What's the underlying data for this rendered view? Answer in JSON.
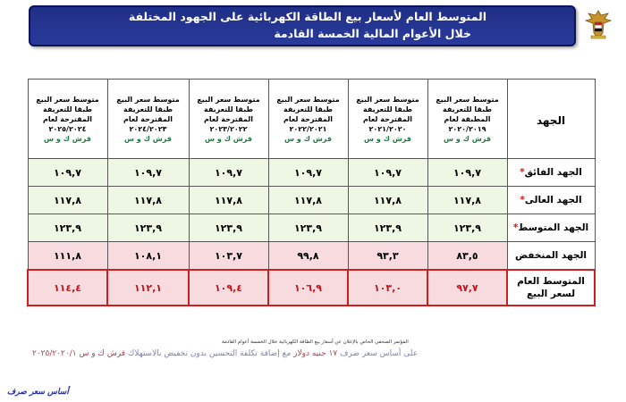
{
  "header": {
    "line1": "المتوسط العام لأسعار بيع الطاقة الكهربائية على الجهود المختلفة",
    "line2": "خلال الأعوام المالية الخمسة القادمة"
  },
  "table": {
    "corner": "الجهد",
    "columns": [
      {
        "title": "متوسط سعر البيع طبقا للتعريفة المطبقة لعام ٢٠٢٠/٢٠١٩",
        "unit": "قرش ك و س"
      },
      {
        "title": "متوسط سعر البيع طبقا للتعريفة المقترحة لعام ٢٠٢١/٢٠٢٠",
        "unit": "قرش ك و س"
      },
      {
        "title": "متوسط سعر البيع طبقا للتعريفة المقترحة لعام ٢٠٢٢/٢٠٢١",
        "unit": "قرش ك و س"
      },
      {
        "title": "متوسط سعر البيع طبقا للتعريفة المقترحة لعام ٢٠٢٣/٢٠٢٢",
        "unit": "قرش ك و س"
      },
      {
        "title": "متوسط سعر البيع طبقا للتعريفة المقترحة لعام ٢٠٢٤/٢٠٢٣",
        "unit": "قرش ك و س"
      },
      {
        "title": "متوسط سعر البيع طبقا للتعريفة المقترحة لعام ٢٠٢٥/٢٠٢٤",
        "unit": "قرش ك و س"
      }
    ],
    "rows": [
      {
        "label": "الجهد الفائق",
        "star": "*",
        "values": [
          "١٠٩,٧",
          "١٠٩,٧",
          "١٠٩,٧",
          "١٠٩,٧",
          "١٠٩,٧",
          "١٠٩,٧"
        ]
      },
      {
        "label": "الجهد العالى",
        "star": "*",
        "values": [
          "١١٧,٨",
          "١١٧,٨",
          "١١٧,٨",
          "١١٧,٨",
          "١١٧,٨",
          "١١٧,٨"
        ]
      },
      {
        "label": "الجهد المتوسط",
        "star": "*",
        "values": [
          "١٢٣,٩",
          "١٢٣,٩",
          "١٢٣,٩",
          "١٢٣,٩",
          "١٢٣,٩",
          "١٢٣,٩"
        ]
      },
      {
        "label": "الجهد المنخفض",
        "star": "",
        "values": [
          "٨٣,٥",
          "٩٣,٣",
          "٩٩,٨",
          "١٠٣,٧",
          "١٠٨,١",
          "١١١,٨"
        ]
      },
      {
        "label": "المتوسط العام لسعر البيع",
        "star": "",
        "values": [
          "٩٧,٧",
          "١٠٣,٠",
          "١٠٦,٩",
          "١٠٩,٤",
          "١١٢,١",
          "١١٤,٤"
        ]
      }
    ]
  },
  "footer": {
    "note_small": "المؤتمر الصحفي الخاص بالإعلان عن أسعار بيع الطاقة الكهربائية خلال الخمسة أعوام القادمة",
    "note_a": "على أساس سعر صرف",
    "note_b": "١٧ جنيه دولار",
    "note_c": "مع إضافة تكلفة التحسين",
    "note_d": "بدون تخفيض بالاستهلاك",
    "note_e": "قرش ك و س ٢٠٢٥/٢٠٢٠/١",
    "brand": "أساس سعر صرف"
  },
  "colors": {
    "title_bg": "#1f2f86",
    "green_row": "#eef7e3",
    "red_row": "#f8dbdf",
    "avg_border": "#cc1f1f",
    "unit_text": "#1a7a3a"
  }
}
